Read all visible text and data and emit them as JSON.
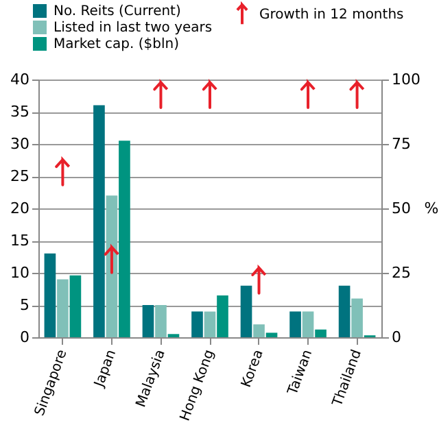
{
  "chart_data": {
    "type": "bar",
    "categories": [
      "Singapore",
      "Japan",
      "Malaysia",
      "Hong Kong",
      "Korea",
      "Taiwan",
      "Thailand"
    ],
    "series": [
      {
        "name": "No. Reits (Current)",
        "color": "#00737f",
        "values": [
          13,
          36,
          5,
          4,
          8,
          4,
          8
        ]
      },
      {
        "name": "Listed in last two years",
        "color": "#80c0b8",
        "values": [
          9,
          22,
          5,
          4,
          2,
          4,
          6
        ]
      },
      {
        "name": "Market cap. ($bln)",
        "color": "#009480",
        "values": [
          9.6,
          30.5,
          0.5,
          6.5,
          0.7,
          1.2,
          0.3
        ]
      },
      {
        "name": "Growth in 12 months",
        "type": "scatter",
        "axis": "y2",
        "color": "#e8202a",
        "values": [
          64,
          30,
          94,
          94,
          22,
          94,
          94
        ]
      }
    ],
    "ylim": [
      0,
      40
    ],
    "yticks": [
      0,
      5,
      10,
      15,
      20,
      25,
      30,
      35,
      40
    ],
    "y2lim": [
      0,
      100
    ],
    "y2ticks": [
      0,
      25,
      50,
      75,
      100
    ],
    "y2label": "%",
    "grid": "y",
    "legend": "top"
  }
}
